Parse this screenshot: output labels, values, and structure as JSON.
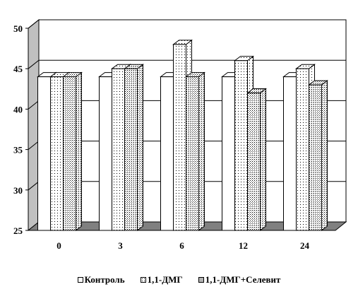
{
  "chart_data": {
    "type": "bar",
    "categories": [
      "0",
      "3",
      "6",
      "12",
      "24"
    ],
    "series": [
      {
        "name": "Контроль",
        "values": [
          44,
          44,
          44,
          44,
          44
        ],
        "fill": "solid-white"
      },
      {
        "name": "1,1-ДМГ",
        "values": [
          44,
          45,
          48,
          46,
          45
        ],
        "fill": "dotted"
      },
      {
        "name": "1,1-ДМГ+Селевит",
        "values": [
          44,
          45,
          44,
          42,
          43
        ],
        "fill": "dense-dotted"
      }
    ],
    "ylim": [
      25,
      50
    ],
    "yticks": [
      "25",
      "30",
      "35",
      "40",
      "45",
      "50"
    ],
    "grid": true,
    "style": "3d",
    "legend_position": "bottom",
    "colors": {
      "bar_face": "#ffffff",
      "bar_side": "#ffffff",
      "floor": "#808080",
      "wall": "#ffffff",
      "grid": "#000000"
    }
  }
}
